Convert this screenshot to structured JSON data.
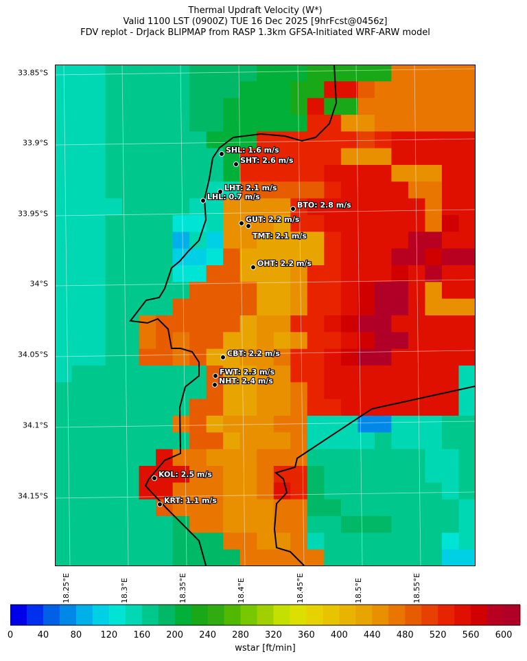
{
  "title": {
    "line1": "Thermal Updraft Velocity (W*)",
    "line2": "Valid 1100 LST (0900Z) TUE 16 Dec 2025 [9hrFcst@0456z]",
    "line3": "FDV replot - DrJack BLIPMAP from RASP 1.3km GFSA-Initiated WRF-ARW model"
  },
  "lat_labels": [
    "33.85°S",
    "33.9°S",
    "33.95°S",
    "34°S",
    "34.05°S",
    "34.1°S",
    "34.15°S"
  ],
  "lon_labels": [
    "18.25°E",
    "18.3°E",
    "18.35°E",
    "18.4°E",
    "18.45°E",
    "18.5°E",
    "18.55°E"
  ],
  "stations": [
    {
      "label": "SHL: 1.6 m/s"
    },
    {
      "label": "SHT: 2.6 m/s"
    },
    {
      "label": "LHT: 2.1 m/s"
    },
    {
      "label": "LHL: 0.7 m/s"
    },
    {
      "label": "BTO: 2.8 m/s"
    },
    {
      "label": "GUT: 2.2 m/s"
    },
    {
      "label": "TMT: 2.1 m/s"
    },
    {
      "label": "OHT: 2.2 m/s"
    },
    {
      "label": "CBT: 2.2 m/s"
    },
    {
      "label": "FWT: 2.3 m/s"
    },
    {
      "label": "NHT: 2.4 m/s"
    },
    {
      "label": "KOL: 2.5 m/s"
    },
    {
      "label": "KRT: 1.1 m/s"
    }
  ],
  "colorbar": {
    "label": "wstar [ft/min]",
    "min": 0,
    "max": 620,
    "step": 20,
    "ticks": [
      "0",
      "40",
      "80",
      "120",
      "160",
      "200",
      "240",
      "280",
      "320",
      "360",
      "400",
      "440",
      "480",
      "520",
      "560",
      "600"
    ],
    "colors": [
      "#0000e8",
      "#0030ee",
      "#0060e6",
      "#0088e8",
      "#00b0e8",
      "#00d0e6",
      "#00e4d6",
      "#00d8b4",
      "#00c88c",
      "#00b866",
      "#00b038",
      "#18a818",
      "#30ac10",
      "#50b800",
      "#78c800",
      "#a0d000",
      "#c4e000",
      "#dce000",
      "#e6d200",
      "#e8c400",
      "#e8b400",
      "#e8a400",
      "#e89000",
      "#e87600",
      "#e85c00",
      "#e84000",
      "#e82400",
      "#e01000",
      "#d00000",
      "#b80020",
      "#b00028"
    ],
    "colors_note_ignore": ""
  },
  "wstar_grid_levels": [
    "777888889999aaabbbbbnnnnnn",
    "7778888899 9aaabbrronnnnnn",
    "7778888899aaaabrbbnnnnnnn",
    "7778888899aaaaaqqmmnnnnnn",
    "777888888aaaqqqqqqpqrrrrr",
    "7778888888aqqqqqqmmmrrrrr",
    "7778888888aqqqqqrrrrmmmrr",
    "77788888877oooooqrrrrnnrr",
    "7777888877mmmmqrrrrrrrnrr",
    "7778888667mmmlqqrrrrrrnsr",
    "7778888475mmllllqrrrrttrr",
    "7778888556olllllqrrrttstt",
    "777888866oolllmqqrrrsrtrr",
    "77788888oooollmqqrsuurmrr",
    "7778888ooooollmqqrsuurmmm",
    "77788nooooolmmqqrsuurrrrr",
    "77788nonoollmlmqqrsuurrrr",
    "77788oonollmmnqqrsuurrrrr",
    "788888888ollmmqqrrrrrrrr7",
    "888888888ollmmnqrrrrrrrr7",
    "88888888oollmmnqqrrrrrrr7",
    "8888888nolmmmnn7773377788",
    "88888888oolmmmn7777877788",
    "888888rnnmmmnnn8888888778",
    "88888rrrnnmmnqq9888888778",
    "88888rrnnnmmnrq9888888878",
    "888888onnnmmmnn9988888887",
    "88888889nnmmmnn8899988887",
    "8888888999nnmmn7888888867",
    "88888889999nnnnn888888855"
  ]
}
